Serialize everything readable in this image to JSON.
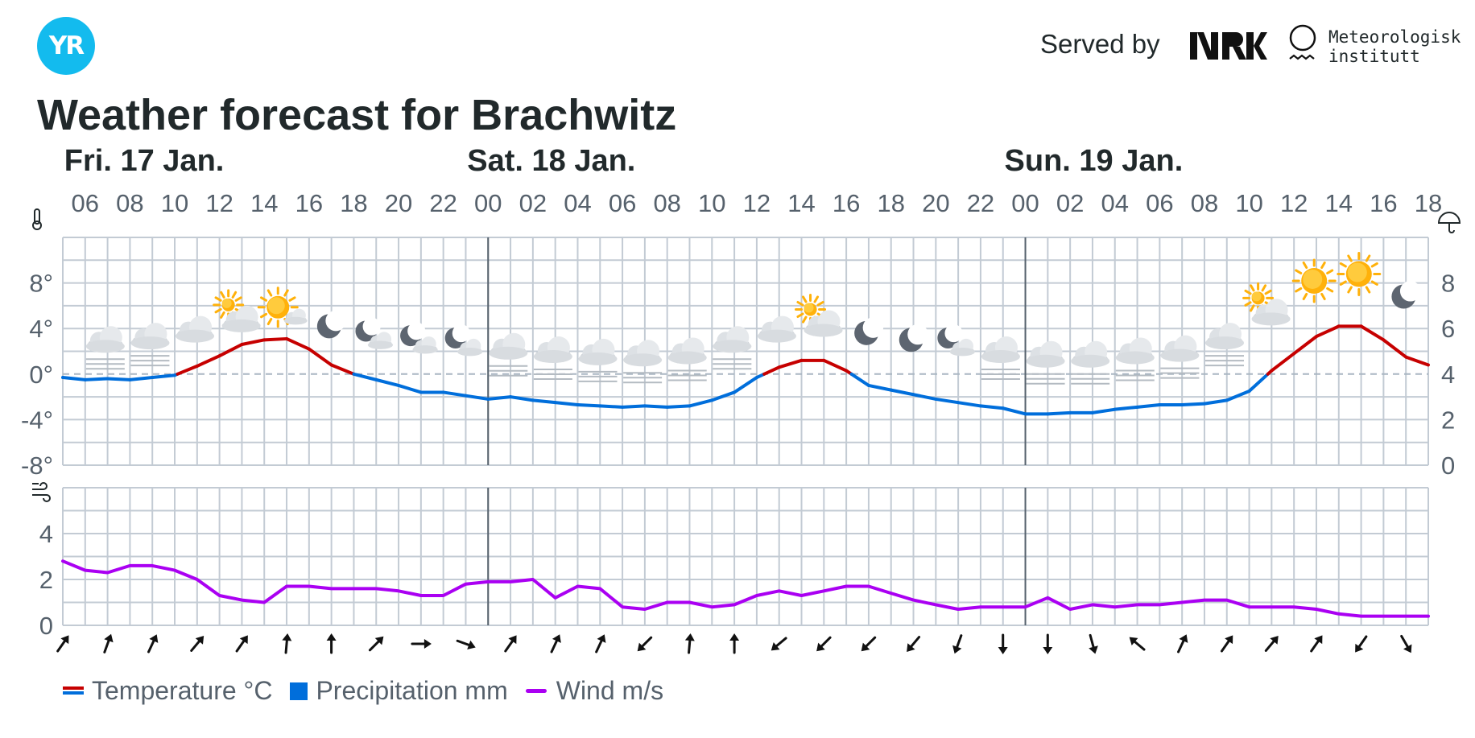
{
  "header": {
    "logo_text": "YR",
    "served_by": "Served by",
    "met_name": "Meteorologisk\ninstitutt",
    "title": "Weather forecast for Brachwitz"
  },
  "colors": {
    "temp_warm": "#c60000",
    "temp_cold": "#006edb",
    "wind": "#aa00f2",
    "grid": "#c3cbd4",
    "day_divider": "#56616c",
    "text": "#56616c"
  },
  "legend": {
    "temperature": "Temperature °C",
    "precipitation": "Precipitation mm",
    "wind": "Wind m/s"
  },
  "chart_data": {
    "type": "line",
    "days": [
      {
        "label": "Fri. 17 Jan.",
        "start_hour": 6
      },
      {
        "label": "Sat. 18 Jan.",
        "start_hour": 24
      },
      {
        "label": "Sun. 19 Jan.",
        "start_hour": 48
      }
    ],
    "x_hours_range": [
      5,
      66
    ],
    "hour_tick_labels": [
      "06",
      "08",
      "10",
      "12",
      "14",
      "16",
      "18",
      "20",
      "22",
      "00",
      "02",
      "04",
      "06",
      "08",
      "10",
      "12",
      "14",
      "16",
      "18",
      "20",
      "22",
      "00",
      "02",
      "04",
      "06",
      "08",
      "10",
      "12",
      "14",
      "16",
      "18"
    ],
    "temperature": {
      "unit": "°C",
      "ylim": [
        -8,
        12
      ],
      "y_ticks": [
        "8°",
        "4°",
        "0°",
        "-4°",
        "-8°"
      ],
      "y_tick_values": [
        8,
        4,
        0,
        -4,
        -8
      ],
      "hours": [
        5,
        6,
        7,
        8,
        9,
        10,
        11,
        12,
        13,
        14,
        15,
        16,
        17,
        18,
        19,
        20,
        21,
        22,
        23,
        24,
        25,
        26,
        27,
        28,
        29,
        30,
        31,
        32,
        33,
        34,
        35,
        36,
        37,
        38,
        39,
        40,
        41,
        42,
        43,
        44,
        45,
        46,
        47,
        48,
        49,
        50,
        51,
        52,
        53,
        54,
        55,
        56,
        57,
        58,
        59,
        60,
        61,
        62,
        63,
        64,
        65,
        66
      ],
      "values": [
        -0.3,
        -0.5,
        -0.4,
        -0.5,
        -0.3,
        -0.1,
        0.7,
        1.6,
        2.6,
        3.0,
        3.1,
        2.2,
        0.8,
        0.0,
        -0.5,
        -1.0,
        -1.6,
        -1.6,
        -1.9,
        -2.2,
        -2.0,
        -2.3,
        -2.5,
        -2.7,
        -2.8,
        -2.9,
        -2.8,
        -2.9,
        -2.8,
        -2.3,
        -1.6,
        -0.3,
        0.6,
        1.2,
        1.2,
        0.3,
        -1.0,
        -1.4,
        -1.8,
        -2.2,
        -2.5,
        -2.8,
        -3.0,
        -3.5,
        -3.5,
        -3.4,
        -3.4,
        -3.1,
        -2.9,
        -2.7,
        -2.7,
        -2.6,
        -2.3,
        -1.5,
        0.3,
        1.8,
        3.3,
        4.2,
        4.2,
        3.0,
        1.5,
        0.8
      ]
    },
    "precipitation": {
      "unit": "mm",
      "ylim": [
        0,
        10
      ],
      "y_ticks": [
        "8",
        "6",
        "4",
        "2",
        "0"
      ],
      "y_tick_values": [
        8,
        6,
        4,
        2,
        0
      ],
      "values": []
    },
    "wind": {
      "unit": "m/s",
      "ylim": [
        0,
        6
      ],
      "y_ticks": [
        "4",
        "2",
        "0"
      ],
      "y_tick_values": [
        4,
        2,
        0
      ],
      "hours": [
        5,
        6,
        7,
        8,
        9,
        10,
        11,
        12,
        13,
        14,
        15,
        16,
        17,
        18,
        19,
        20,
        21,
        22,
        23,
        24,
        25,
        26,
        27,
        28,
        29,
        30,
        31,
        32,
        33,
        34,
        35,
        36,
        37,
        38,
        39,
        40,
        41,
        42,
        43,
        44,
        45,
        46,
        47,
        48,
        49,
        50,
        51,
        52,
        53,
        54,
        55,
        56,
        57,
        58,
        59,
        60,
        61,
        62,
        63,
        64,
        65,
        66
      ],
      "values": [
        2.8,
        2.4,
        2.3,
        2.6,
        2.6,
        2.4,
        2.0,
        1.3,
        1.1,
        1.0,
        1.7,
        1.7,
        1.6,
        1.6,
        1.6,
        1.5,
        1.3,
        1.3,
        1.8,
        1.9,
        1.9,
        2.0,
        1.2,
        1.7,
        1.6,
        0.8,
        0.7,
        1.0,
        1.0,
        0.8,
        0.9,
        1.3,
        1.5,
        1.3,
        1.5,
        1.7,
        1.7,
        1.4,
        1.1,
        0.9,
        0.7,
        0.8,
        0.8,
        0.8,
        1.2,
        0.7,
        0.9,
        0.8,
        0.9,
        0.9,
        1.0,
        1.1,
        1.1,
        0.8,
        0.8,
        0.8,
        0.7,
        0.5,
        0.4,
        0.4,
        0.4,
        0.4
      ]
    },
    "weather_symbols": [
      {
        "hour": 6,
        "temp": 0.6,
        "icon": "cloudy-fog-icon"
      },
      {
        "hour": 8,
        "temp": 0.9,
        "icon": "cloudy-fog-icon"
      },
      {
        "hour": 10,
        "temp": 1.5,
        "icon": "cloudy-icon"
      },
      {
        "hour": 12,
        "temp": 2.4,
        "icon": "partly-cloudy-day-icon"
      },
      {
        "hour": 14,
        "temp": 2.9,
        "icon": "fair-day-icon"
      },
      {
        "hour": 16,
        "temp": 1.8,
        "icon": "clear-night-icon"
      },
      {
        "hour": 18,
        "temp": 0.8,
        "icon": "partly-cloudy-night-icon"
      },
      {
        "hour": 20,
        "temp": 0.4,
        "icon": "partly-cloudy-night-icon"
      },
      {
        "hour": 22,
        "temp": 0.2,
        "icon": "partly-cloudy-night-icon"
      },
      {
        "hour": 24,
        "temp": 0.0,
        "icon": "cloudy-fog-icon"
      },
      {
        "hour": 26,
        "temp": -0.3,
        "icon": "cloudy-fog-icon"
      },
      {
        "hour": 28,
        "temp": -0.5,
        "icon": "cloudy-fog-icon"
      },
      {
        "hour": 30,
        "temp": -0.6,
        "icon": "cloudy-fog-icon"
      },
      {
        "hour": 32,
        "temp": -0.4,
        "icon": "cloudy-fog-icon"
      },
      {
        "hour": 34,
        "temp": 0.6,
        "icon": "cloudy-fog-icon"
      },
      {
        "hour": 36,
        "temp": 1.5,
        "icon": "cloudy-icon"
      },
      {
        "hour": 38,
        "temp": 2.0,
        "icon": "partly-cloudy-day-icon"
      },
      {
        "hour": 40,
        "temp": 1.2,
        "icon": "clear-night-icon"
      },
      {
        "hour": 42,
        "temp": 0.6,
        "icon": "clear-night-icon"
      },
      {
        "hour": 44,
        "temp": 0.2,
        "icon": "partly-cloudy-night-icon"
      },
      {
        "hour": 46,
        "temp": -0.3,
        "icon": "cloudy-fog-icon"
      },
      {
        "hour": 48,
        "temp": -0.7,
        "icon": "cloudy-fog-icon"
      },
      {
        "hour": 50,
        "temp": -0.7,
        "icon": "cloudy-fog-icon"
      },
      {
        "hour": 52,
        "temp": -0.4,
        "icon": "cloudy-fog-icon"
      },
      {
        "hour": 54,
        "temp": -0.2,
        "icon": "cloudy-fog-icon"
      },
      {
        "hour": 56,
        "temp": 0.9,
        "icon": "cloudy-fog-icon"
      },
      {
        "hour": 58,
        "temp": 3.0,
        "icon": "partly-cloudy-day-icon"
      },
      {
        "hour": 60,
        "temp": 5.5,
        "icon": "clear-day-icon"
      },
      {
        "hour": 62,
        "temp": 6.1,
        "icon": "clear-day-icon"
      },
      {
        "hour": 64,
        "temp": 4.4,
        "icon": "clear-night-icon"
      }
    ],
    "wind_directions": [
      {
        "hour": 5,
        "to_deg": 35
      },
      {
        "hour": 7,
        "to_deg": 20
      },
      {
        "hour": 9,
        "to_deg": 25
      },
      {
        "hour": 11,
        "to_deg": 40
      },
      {
        "hour": 13,
        "to_deg": 35
      },
      {
        "hour": 15,
        "to_deg": 5
      },
      {
        "hour": 17,
        "to_deg": 0
      },
      {
        "hour": 19,
        "to_deg": 45
      },
      {
        "hour": 21,
        "to_deg": 90
      },
      {
        "hour": 23,
        "to_deg": 110
      },
      {
        "hour": 25,
        "to_deg": 35
      },
      {
        "hour": 27,
        "to_deg": 25
      },
      {
        "hour": 29,
        "to_deg": 25
      },
      {
        "hour": 31,
        "to_deg": 225
      },
      {
        "hour": 33,
        "to_deg": 5
      },
      {
        "hour": 35,
        "to_deg": 0
      },
      {
        "hour": 37,
        "to_deg": 230
      },
      {
        "hour": 39,
        "to_deg": 225
      },
      {
        "hour": 41,
        "to_deg": 225
      },
      {
        "hour": 43,
        "to_deg": 220
      },
      {
        "hour": 45,
        "to_deg": 200
      },
      {
        "hour": 47,
        "to_deg": 180
      },
      {
        "hour": 49,
        "to_deg": 180
      },
      {
        "hour": 51,
        "to_deg": 165
      },
      {
        "hour": 53,
        "to_deg": 310
      },
      {
        "hour": 55,
        "to_deg": 25
      },
      {
        "hour": 57,
        "to_deg": 35
      },
      {
        "hour": 59,
        "to_deg": 40
      },
      {
        "hour": 61,
        "to_deg": 35
      },
      {
        "hour": 63,
        "to_deg": 215
      },
      {
        "hour": 65,
        "to_deg": 150
      }
    ]
  }
}
